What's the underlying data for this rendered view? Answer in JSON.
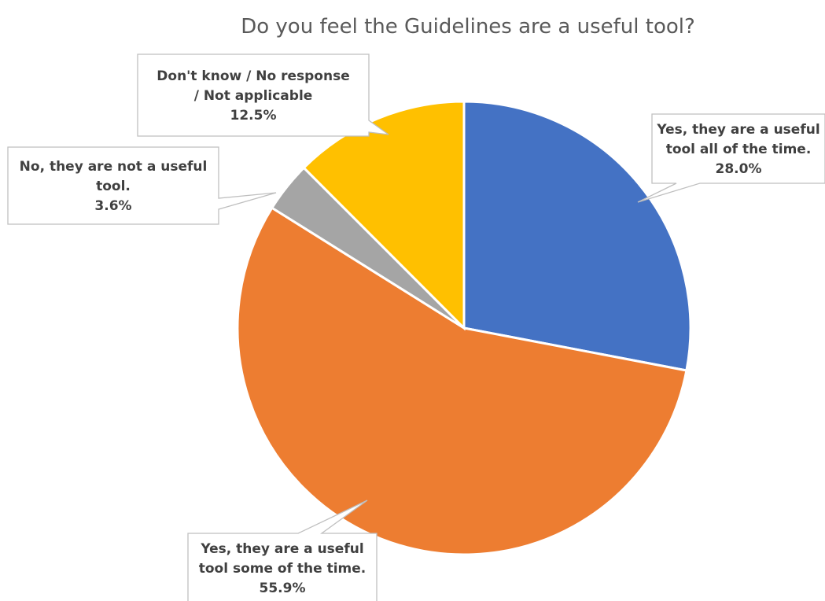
{
  "chart_data": {
    "type": "pie",
    "title": "Do you feel the Guidelines are a useful tool?",
    "slices": [
      {
        "label_lines": [
          "Yes, they are a useful",
          "tool all of the time."
        ],
        "value": 28.0,
        "display": "28.0%",
        "color": "#4472C4"
      },
      {
        "label_lines": [
          "Yes, they are a useful",
          "tool some of the time."
        ],
        "value": 55.9,
        "display": "55.9%",
        "color": "#ED7D31"
      },
      {
        "label_lines": [
          "No, they are not a useful",
          "tool."
        ],
        "value": 3.6,
        "display": "3.6%",
        "color": "#A5A5A5"
      },
      {
        "label_lines": [
          "Don't know / No response",
          "/ Not applicable"
        ],
        "value": 12.5,
        "display": "12.5%",
        "color": "#FFC000"
      }
    ],
    "start_angle_deg": 0,
    "direction": "clockwise",
    "legend": "none",
    "data_labels": "callouts"
  }
}
